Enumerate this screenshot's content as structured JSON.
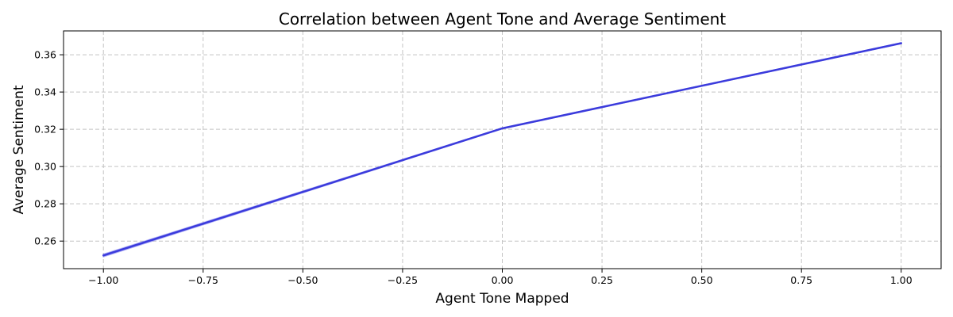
{
  "chart_data": {
    "type": "line",
    "title": "Correlation between Agent Tone and Average Sentiment",
    "xlabel": "Agent Tone Mapped",
    "ylabel": "Average Sentiment",
    "xlim": [
      -1.1,
      1.1
    ],
    "ylim": [
      0.2452,
      0.3728
    ],
    "xticks": [
      -1.0,
      -0.75,
      -0.5,
      -0.25,
      0.0,
      0.25,
      0.5,
      0.75,
      1.0
    ],
    "xtick_labels": [
      "−1.00",
      "−0.75",
      "−0.50",
      "−0.25",
      "0.00",
      "0.25",
      "0.50",
      "0.75",
      "1.00"
    ],
    "yticks": [
      0.26,
      0.28,
      0.3,
      0.32,
      0.34,
      0.36
    ],
    "ytick_labels": [
      "0.26",
      "0.28",
      "0.30",
      "0.32",
      "0.34",
      "0.36"
    ],
    "grid": true,
    "series": [
      {
        "x": [
          -1.0,
          0.0,
          1.0
        ],
        "y": [
          0.2523,
          0.3205,
          0.3662
        ],
        "color": "#3b3bdc",
        "band_color": "#6e6ef0",
        "band_lower": [
          0.2516,
          0.3203,
          0.366
        ],
        "band_upper": [
          0.253,
          0.3207,
          0.3664
        ]
      }
    ]
  }
}
